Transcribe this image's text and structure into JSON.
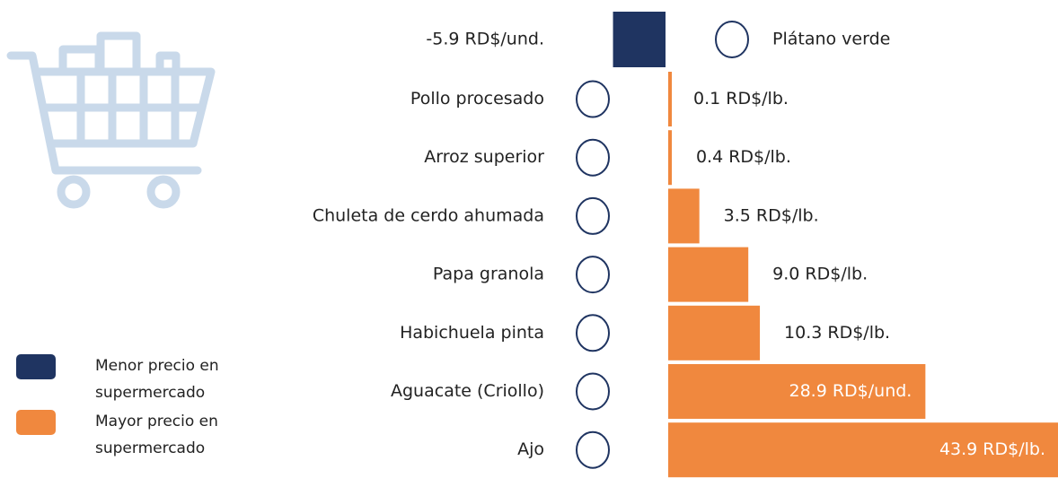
{
  "chart_data": {
    "type": "bar",
    "orientation": "horizontal",
    "categories": [
      "Plátano verde",
      "Pollo procesado",
      "Arroz superior",
      "Chuleta de cerdo ahumada",
      "Papa granola",
      "Habichuela pinta",
      "Aguacate (Criollo)",
      "Ajo"
    ],
    "values": [
      -5.9,
      0.1,
      0.4,
      3.5,
      9.0,
      10.3,
      28.9,
      43.9
    ],
    "value_labels": [
      "-5.9 RD$/und.",
      "0.1 RD$/lb.",
      "0.4 RD$/lb.",
      "3.5 RD$/lb.",
      "9.0 RD$/lb.",
      "10.3 RD$/lb.",
      "28.9 RD$/und.",
      "43.9 RD$/lb."
    ],
    "legend": [
      {
        "name": "Menor precio en supermercado",
        "color": "#1f3461"
      },
      {
        "name": "Mayor precio en supermercado",
        "color": "#f0883e"
      }
    ]
  }
}
